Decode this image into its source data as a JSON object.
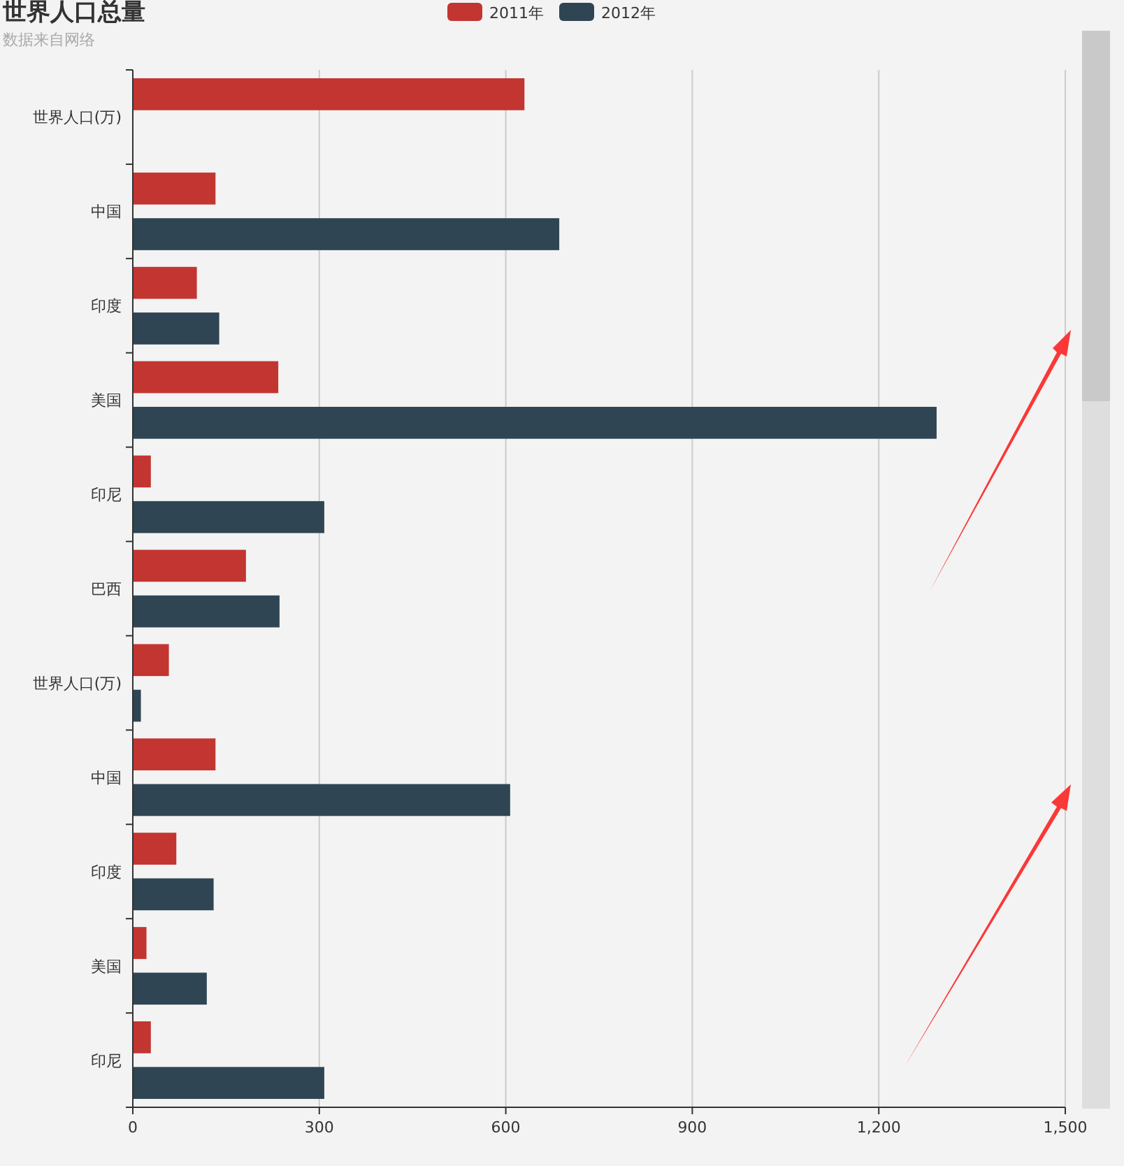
{
  "chart_data": {
    "type": "bar",
    "orientation": "horizontal",
    "title": "世界人口总量",
    "subtitle": "数据来自网络",
    "categories": [
      "世界人口(万)",
      "中国",
      "印度",
      "美国",
      "印尼",
      "巴西",
      "世界人口(万)",
      "中国",
      "印度",
      "美国",
      "印尼"
    ],
    "series": [
      {
        "name": "2011年",
        "color": "#c23531",
        "values": [
          630,
          133,
          103,
          234,
          29,
          182,
          58,
          133,
          70,
          22,
          29
        ]
      },
      {
        "name": "2012年",
        "color": "#2f4554",
        "values": [
          null,
          686,
          139,
          1293,
          308,
          236,
          13,
          607,
          130,
          119,
          308
        ]
      }
    ],
    "xlim": [
      0,
      1500
    ],
    "xticks": [
      0,
      300,
      600,
      900,
      {
        "value": 1200,
        "label": "1,200"
      },
      {
        "value": 1500,
        "label": "1,500"
      }
    ],
    "grid": "x",
    "legend": "top"
  }
}
